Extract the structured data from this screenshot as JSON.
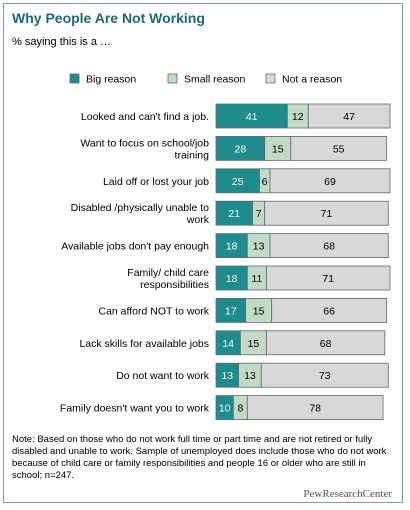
{
  "title": "Why People Are Not Working",
  "subtitle": "% saying this is a …",
  "note": "Note: Based on those who do not work full time or part time and are not retired or fully disabled and unable to work. Sample of unemployed does include those who do not work because of child care or family responsibilities and people 16 or older who are still in school; n=247.",
  "source": "PewResearchCenter",
  "colors": {
    "big": "#1c8c8c",
    "small": "#c2dbc4",
    "not": "#d9d9d9",
    "stroke": "#5f6a70",
    "title": "#1c6b72"
  },
  "chart_data": {
    "type": "bar",
    "orientation": "horizontal",
    "stacked": true,
    "categories": [
      "Looked and can't find a job.",
      "Want to focus on school/job training",
      "Laid off or lost your job",
      "Disabled /physically unable to work",
      "Available jobs don't pay enough",
      "Family/ child care responsibilities",
      "Can afford NOT to work",
      "Lack skills for available jobs",
      "Do not want to work",
      "Family doesn't want you to work"
    ],
    "series": [
      {
        "name": "Big reason",
        "values": [
          41,
          28,
          25,
          21,
          18,
          18,
          17,
          14,
          13,
          10
        ]
      },
      {
        "name": "Small reason",
        "values": [
          12,
          15,
          6,
          7,
          13,
          11,
          15,
          15,
          13,
          8
        ]
      },
      {
        "name": "Not a reason",
        "values": [
          47,
          55,
          69,
          71,
          68,
          71,
          66,
          68,
          73,
          78
        ]
      }
    ],
    "legend": "top",
    "grid": false
  }
}
